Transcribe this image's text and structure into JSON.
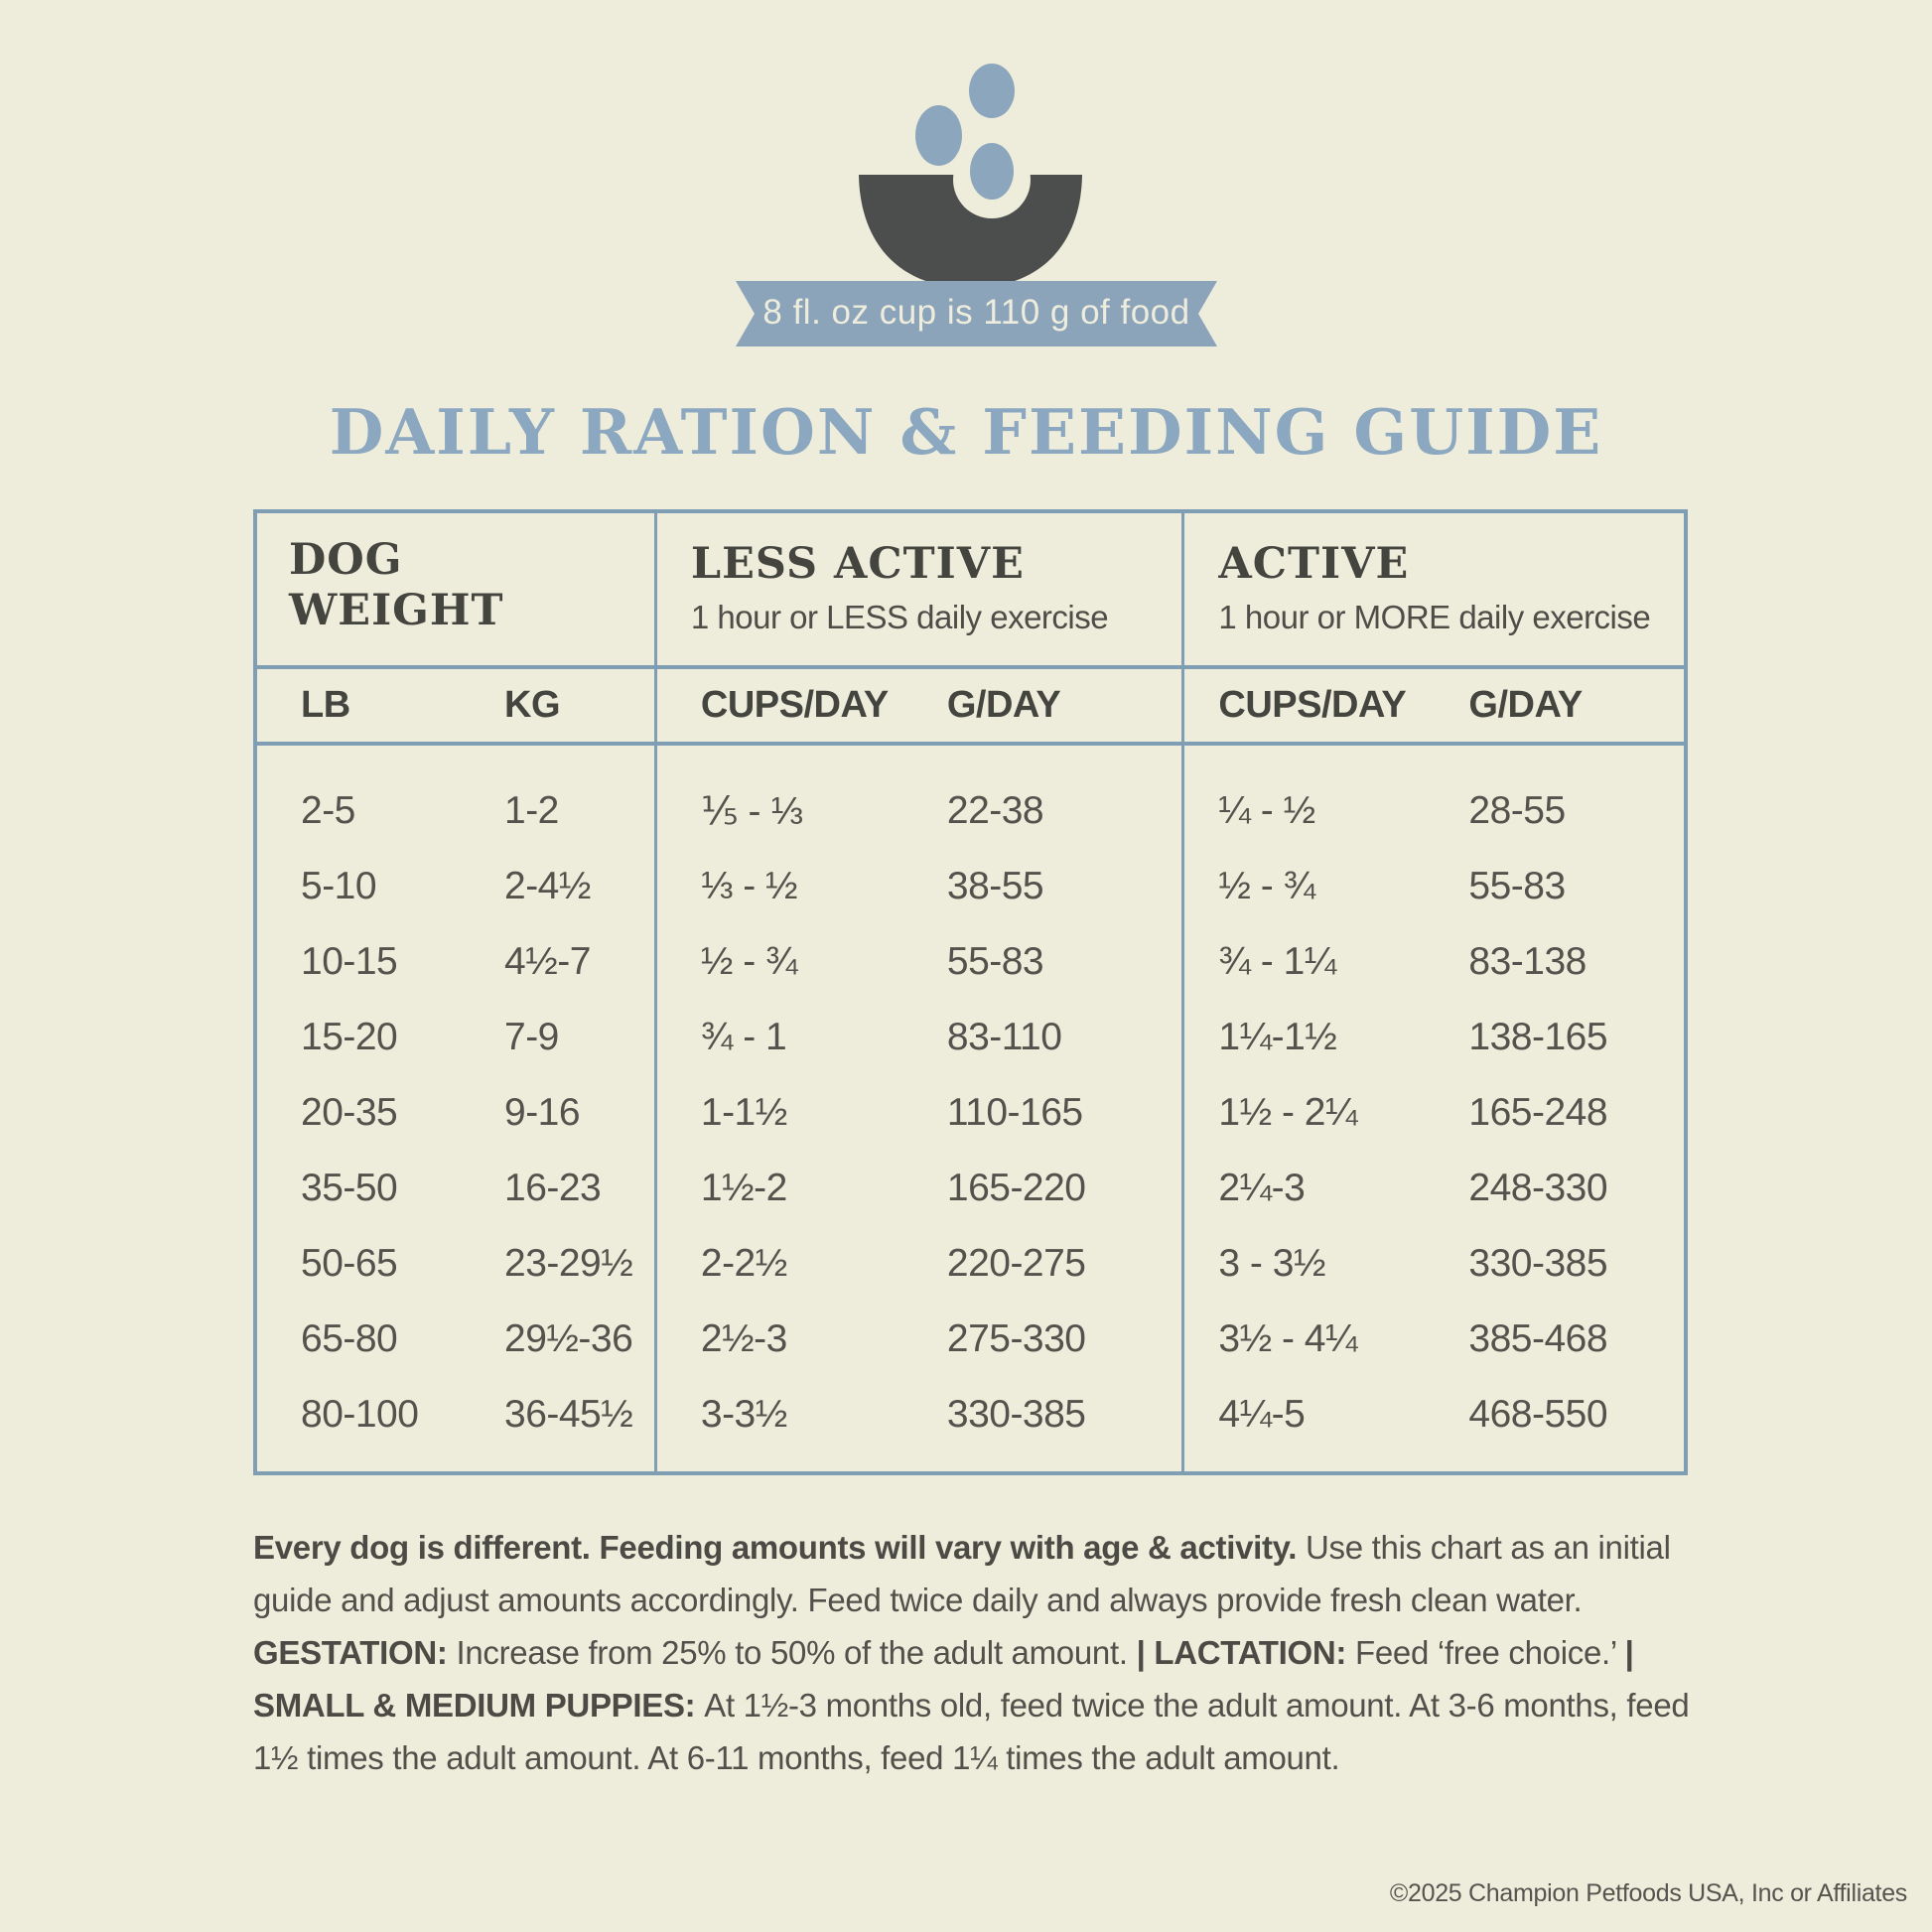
{
  "badge": {
    "ribbon_text": "8 fl. oz cup is 110 g of food"
  },
  "title": {
    "text": "DAILY RATION & FEEDING GUIDE"
  },
  "table": {
    "columns": [
      {
        "header_line1": "DOG",
        "header_line2": "WEIGHT",
        "sub1": "LB",
        "sub2": "KG"
      },
      {
        "header": "LESS ACTIVE",
        "subtitle": "1 hour or LESS daily exercise",
        "sub1": "CUPS/DAY",
        "sub2": "G/DAY"
      },
      {
        "header": "ACTIVE",
        "subtitle": "1 hour or MORE daily exercise",
        "sub1": "CUPS/DAY",
        "sub2": "G/DAY"
      }
    ],
    "rows": [
      {
        "lb": "2-5",
        "kg": "1-2",
        "la_cups": "⅕ - ⅓",
        "la_g": "22-38",
        "a_cups": "¼ - ½",
        "a_g": "28-55"
      },
      {
        "lb": "5-10",
        "kg": "2-4½",
        "la_cups": "⅓ - ½",
        "la_g": "38-55",
        "a_cups": "½ - ¾",
        "a_g": "55-83"
      },
      {
        "lb": "10-15",
        "kg": "4½-7",
        "la_cups": "½ - ¾",
        "la_g": "55-83",
        "a_cups": "¾ - 1¼",
        "a_g": "83-138"
      },
      {
        "lb": "15-20",
        "kg": "7-9",
        "la_cups": "¾ - 1",
        "la_g": "83-110",
        "a_cups": "1¼-1½",
        "a_g": "138-165"
      },
      {
        "lb": "20-35",
        "kg": "9-16",
        "la_cups": "1-1½",
        "la_g": "110-165",
        "a_cups": "1½ - 2¼",
        "a_g": "165-248"
      },
      {
        "lb": "35-50",
        "kg": "16-23",
        "la_cups": "1½-2",
        "la_g": "165-220",
        "a_cups": "2¼-3",
        "a_g": "248-330"
      },
      {
        "lb": "50-65",
        "kg": "23-29½",
        "la_cups": "2-2½",
        "la_g": "220-275",
        "a_cups": "3 - 3½",
        "a_g": "330-385"
      },
      {
        "lb": "65-80",
        "kg": "29½-36",
        "la_cups": "2½-3",
        "la_g": "275-330",
        "a_cups": "3½ - 4¼",
        "a_g": "385-468"
      },
      {
        "lb": "80-100",
        "kg": "36-45½",
        "la_cups": "3-3½",
        "la_g": "330-385",
        "a_cups": "4¼-5",
        "a_g": "468-550"
      }
    ]
  },
  "footer": {
    "segments": [
      {
        "text": "Every dog is different. Feeding amounts will vary with age & activity. "
      },
      {
        "text": "Use this chart as an initial guide and adjust amounts accordingly. Feed twice daily and always provide fresh clean water. "
      },
      {
        "text": "GESTATION: "
      },
      {
        "text": "Increase from 25% to 50% of the adult amount. "
      },
      {
        "text": "| LACTATION: "
      },
      {
        "text": "Feed ‘free choice.’ "
      },
      {
        "text": "| SMALL & MEDIUM PUPPIES: "
      },
      {
        "text": "At 1½-3 months old, feed twice the adult amount. At 3-6 months, feed 1½ times the adult amount. At 6-11 months, feed 1¼ times the adult amount."
      }
    ]
  },
  "copyright": {
    "text": "©2025 Champion Petfoods USA, Inc or Affiliates"
  },
  "colors": {
    "background": "#eeeddb",
    "accent_blue": "#8ba4ba",
    "table_line_blue": "#7f9eb4",
    "title_blue": "#8ca7c0",
    "bowl_charcoal": "#4c4e4d",
    "text_dark": "#53524c"
  }
}
